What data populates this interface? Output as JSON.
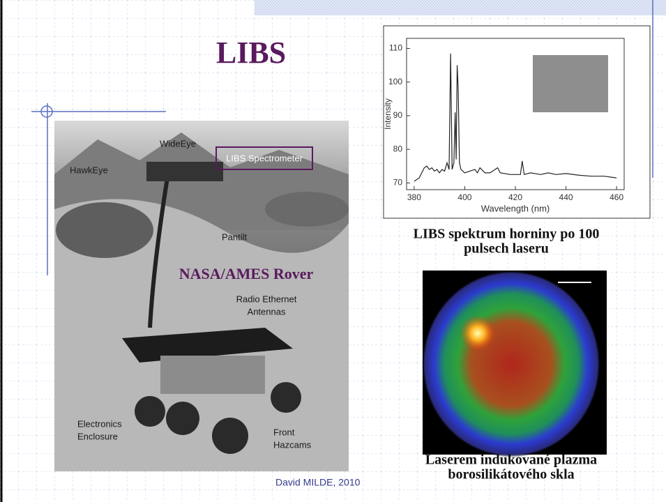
{
  "title": "LIBS",
  "rover_labels": [
    [
      "WideEye"
    ],
    [
      "HawkEye"
    ],
    [
      "LIBS Spectrometer"
    ],
    [
      "Pantilt"
    ],
    [
      "NASA/AMES Rover"
    ],
    [
      "Radio Ethernet",
      "Antennas"
    ],
    [
      "Electronics",
      "Enclosure"
    ],
    [
      "Front",
      "Hazcams"
    ]
  ],
  "spectrum": {
    "type": "line",
    "x_label": "Wavelength (nm)",
    "y_label": "Intensity",
    "x": [
      380,
      382,
      383,
      384,
      385,
      386,
      387,
      388,
      389,
      390,
      391,
      392,
      393,
      393.8,
      394.4,
      395,
      395.7,
      396.2,
      396.6,
      397,
      397.4,
      397.9,
      398.5,
      400,
      402,
      404,
      405,
      406,
      408,
      410,
      413,
      414,
      418,
      422,
      422.7,
      423.5,
      426,
      430,
      433,
      436,
      440,
      445,
      450,
      455,
      460
    ],
    "values": [
      70.5,
      71.5,
      73,
      74.5,
      75,
      74,
      74.5,
      73.5,
      74,
      73,
      74,
      73.5,
      76,
      74,
      108.5,
      74,
      76,
      91,
      77,
      105,
      98,
      76,
      74,
      73,
      73.5,
      74,
      73,
      74.5,
      73,
      73,
      74.5,
      73,
      72.5,
      72.5,
      76.5,
      72.5,
      73,
      72.5,
      73,
      72.5,
      72.8,
      72.3,
      72,
      72,
      71.5
    ],
    "color": "#222222",
    "xlim": [
      377,
      463
    ],
    "ylim": [
      68,
      113
    ],
    "xticks": [
      380,
      400,
      420,
      440,
      460
    ],
    "yticks": [
      70,
      80,
      90,
      100,
      110
    ]
  },
  "spectrum_caption": [
    "LIBS spektrum horniny po 100",
    "pulsech laseru"
  ],
  "plasma_caption": [
    "Laserem indukované plazma",
    "borosilikátového skla"
  ],
  "footer": "David MILDE, 2010"
}
